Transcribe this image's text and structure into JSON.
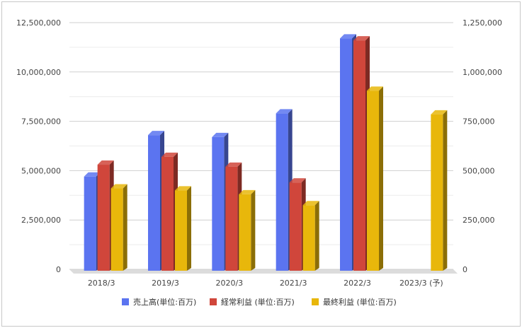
{
  "chart_data": {
    "type": "bar",
    "categories": [
      "2018/3",
      "2019/3",
      "2020/3",
      "2021/3",
      "2022/3",
      "2023/3 (予)"
    ],
    "left_axis": {
      "ylim": [
        0,
        12500000
      ],
      "ticks": [
        "0",
        "2,500,000",
        "5,000,000",
        "7,500,000",
        "10,000,000",
        "12,500,000"
      ]
    },
    "right_axis": {
      "ylim": [
        0,
        1250000
      ],
      "ticks": [
        "0",
        "250,000",
        "500,000",
        "750,000",
        "1,000,000",
        "1,250,000"
      ]
    },
    "series": [
      {
        "name": "売上高(単位:百万)",
        "axis": "left",
        "color": "#5b74f0",
        "values": [
          4700000,
          6800000,
          6700000,
          7900000,
          11700000,
          null
        ]
      },
      {
        "name": "経常利益 (単位:百万)",
        "axis": "right",
        "color": "#d0463b",
        "values": [
          530000,
          570000,
          520000,
          440000,
          1160000,
          null
        ]
      },
      {
        "name": "最終利益 (単位:百万)",
        "axis": "right",
        "color": "#e8b70b",
        "values": [
          410000,
          400000,
          380000,
          325000,
          905000,
          785000
        ]
      }
    ],
    "grid": true,
    "legend": "bottom"
  }
}
